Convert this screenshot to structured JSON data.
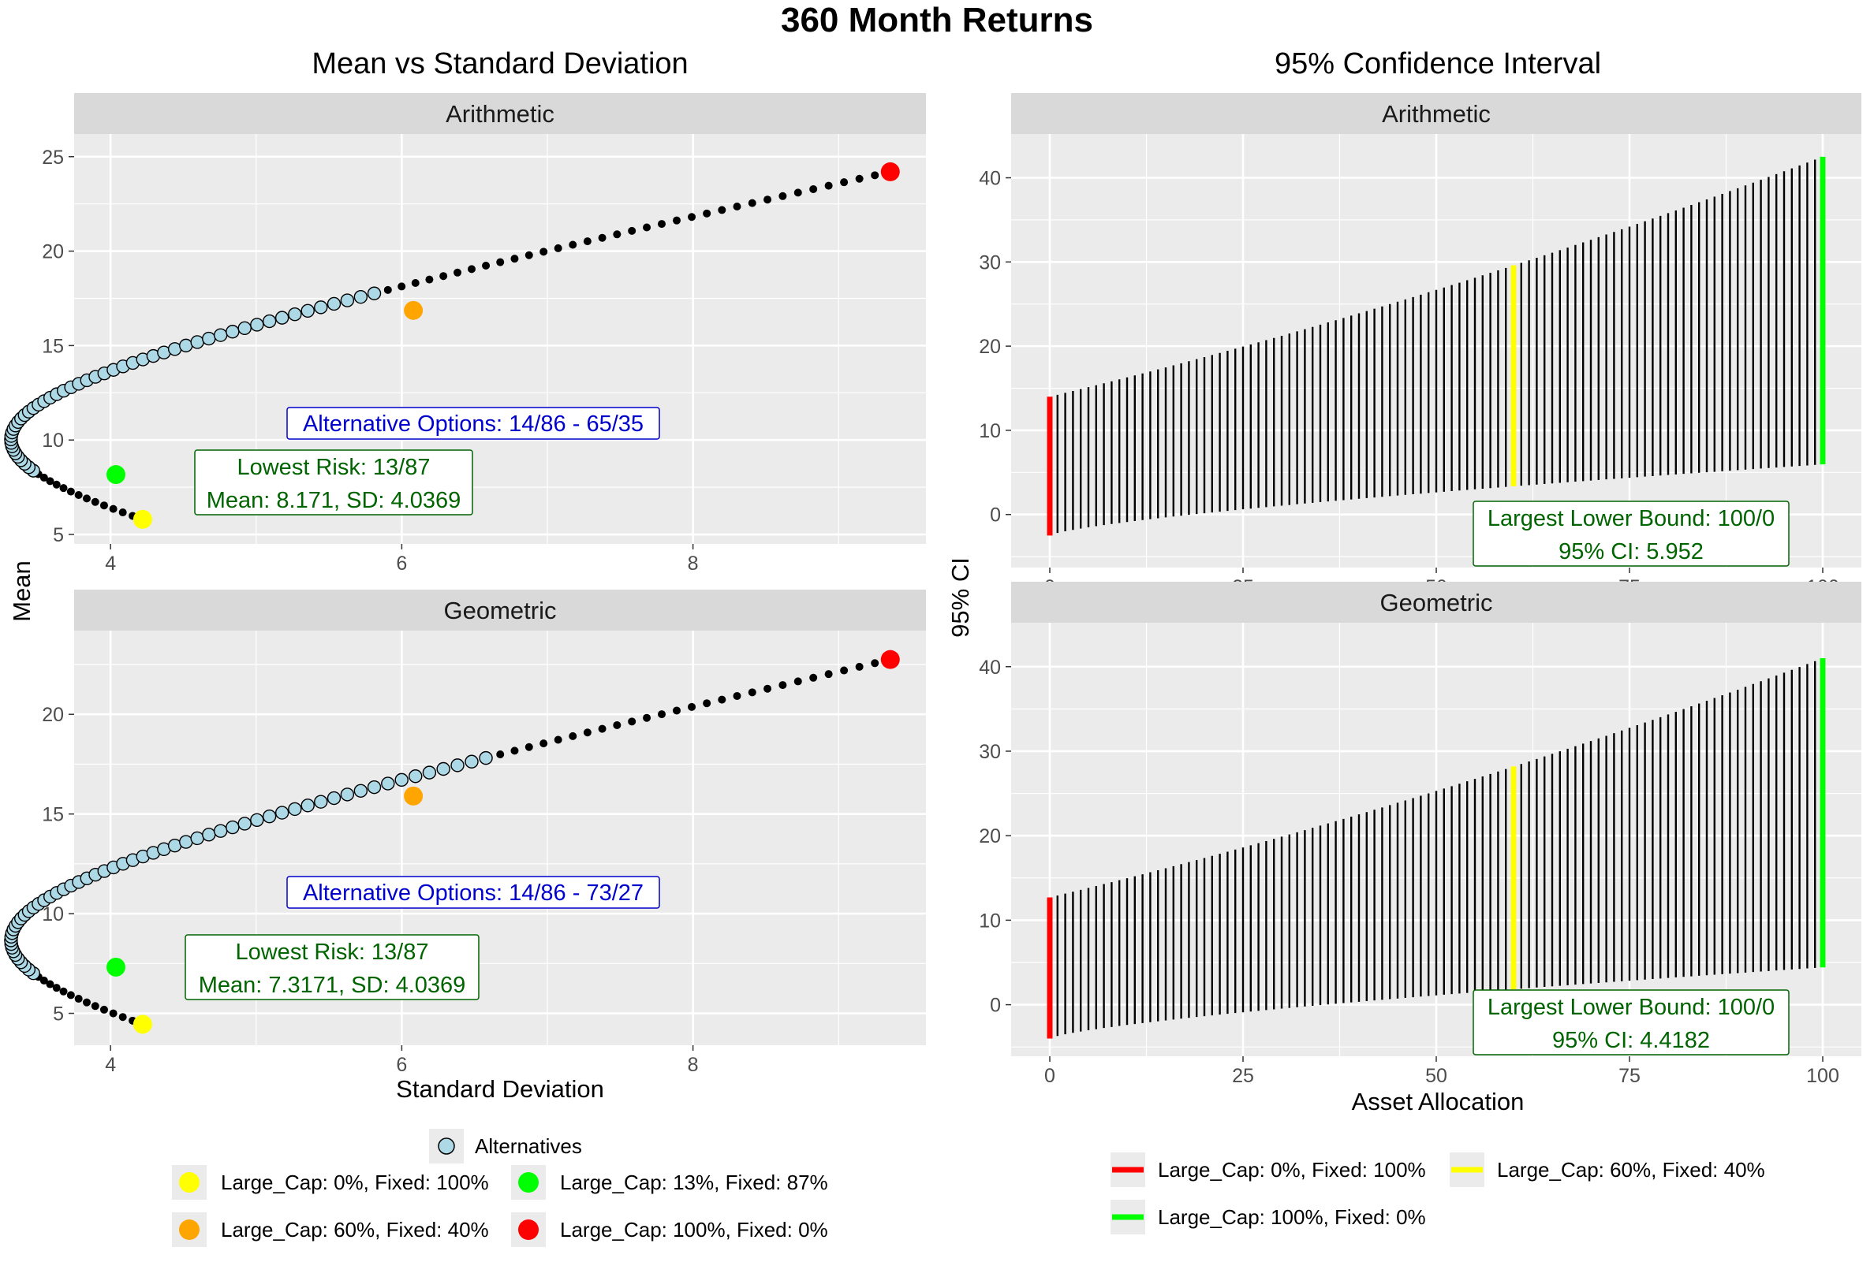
{
  "main_title": "360 Month Returns",
  "left": {
    "title": "Mean vs Standard Deviation",
    "xlabel": "Standard Deviation",
    "ylabel": "Mean"
  },
  "right": {
    "title": "95% Confidence Interval",
    "xlabel": "Asset Allocation",
    "ylabel": "95% CI"
  },
  "colors": {
    "alternatives": "#add8e6",
    "lowest_risk": "#00ff00",
    "fixed100": "#ffff00",
    "cap60": "#ffa500",
    "cap100": "#ff0000",
    "alt_text": "#0000cc",
    "risk_text": "#006400",
    "panel_bg": "#ebebeb",
    "strip_bg": "#d9d9d9"
  },
  "legend_left": {
    "alternatives": "Alternatives",
    "items": [
      "Large_Cap: 0%,  Fixed: 100%",
      "Large_Cap: 13%,  Fixed: 87%",
      "Large_Cap: 60%,  Fixed: 40%",
      "Large_Cap: 100%,  Fixed: 0%"
    ]
  },
  "legend_right": {
    "items": [
      "Large_Cap: 0%,  Fixed: 100%",
      "Large_Cap: 60%,  Fixed: 40%",
      "Large_Cap: 100%,  Fixed: 0%"
    ]
  },
  "chart_data": [
    {
      "type": "scatter",
      "facet": "Arithmetic",
      "xlim": [
        3.75,
        9.6
      ],
      "ylim": [
        4.5,
        26.2
      ],
      "x_ticks": [
        4,
        6,
        8
      ],
      "y_ticks": [
        5,
        10,
        15,
        20,
        25
      ],
      "frontier": {
        "fixed_sd": 4.2207,
        "fixed_mean": 5.8,
        "cap_sd": 9.3551,
        "cap_mean": 24.2
      },
      "special_points": {
        "fixed100": {
          "x": 4.2207,
          "y": 5.8
        },
        "lowest_risk": {
          "x": 4.0369,
          "y": 8.171
        },
        "cap60": {
          "x": 6.0797,
          "y": 16.86
        },
        "cap100": {
          "x": 9.3551,
          "y": 24.2
        }
      },
      "alternatives_range": [
        14,
        65
      ],
      "annotations": {
        "alt": "Alternative Options: 14/86 - 65/35",
        "risk_line1": "Lowest Risk: 13/87",
        "risk_line2": "Mean: 8.171, SD: 4.0369"
      }
    },
    {
      "type": "scatter",
      "facet": "Geometric",
      "xlim": [
        3.75,
        9.6
      ],
      "ylim": [
        3.4,
        24.2
      ],
      "x_ticks": [
        4,
        6,
        8
      ],
      "y_ticks": [
        5,
        10,
        15,
        20
      ],
      "frontier": {
        "fixed_sd": 4.2207,
        "fixed_mean": 4.45,
        "cap_sd": 9.3551,
        "cap_mean": 22.75
      },
      "special_points": {
        "fixed100": {
          "x": 4.2207,
          "y": 4.45
        },
        "lowest_risk": {
          "x": 4.0369,
          "y": 7.3171
        },
        "cap60": {
          "x": 6.0797,
          "y": 15.9
        },
        "cap100": {
          "x": 9.3551,
          "y": 22.75
        }
      },
      "alternatives_range": [
        14,
        73
      ],
      "annotations": {
        "alt": "Alternative Options: 14/86 - 73/27",
        "risk_line1": "Lowest Risk: 13/87",
        "risk_line2": "Mean: 7.3171, SD: 4.0369"
      }
    },
    {
      "type": "errorbar",
      "facet": "Arithmetic",
      "xlim": [
        -5,
        105
      ],
      "ylim": [
        -6.3,
        45.2
      ],
      "x_ticks": [
        0,
        25,
        50,
        75,
        100
      ],
      "y_ticks": [
        0,
        10,
        20,
        30,
        40
      ],
      "interval_ends": {
        "lower_0": -2.5,
        "upper_0": 14.0,
        "lower_100": 5.952,
        "upper_100": 42.5
      },
      "highlight": {
        "0": "red",
        "60": "yellow",
        "100": "green"
      },
      "annotations": {
        "line1": "Largest Lower Bound: 100/0",
        "line2": "95% CI: 5.952"
      }
    },
    {
      "type": "errorbar",
      "facet": "Geometric",
      "xlim": [
        -5,
        105
      ],
      "ylim": [
        -6.1,
        45.2
      ],
      "x_ticks": [
        0,
        25,
        50,
        75,
        100
      ],
      "y_ticks": [
        0,
        10,
        20,
        30,
        40
      ],
      "interval_ends": {
        "lower_0": -4.0,
        "upper_0": 12.7,
        "lower_100": 4.4182,
        "upper_100": 41.0
      },
      "highlight": {
        "0": "red",
        "60": "yellow",
        "100": "green"
      },
      "annotations": {
        "line1": "Largest Lower Bound: 100/0",
        "line2": "95% CI: 4.4182"
      }
    }
  ]
}
